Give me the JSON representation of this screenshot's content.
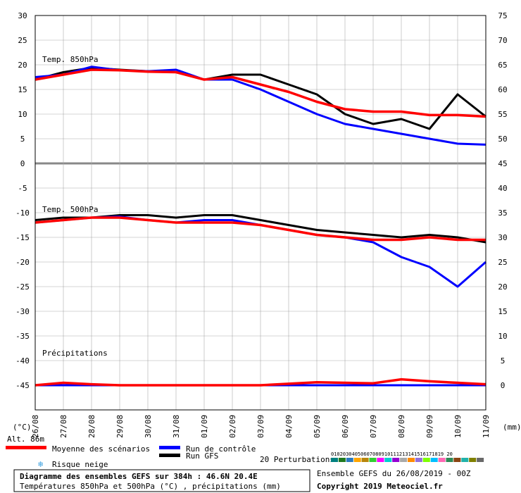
{
  "chart_data": {
    "type": "line",
    "title": "Diagramme des ensembles GEFS sur 384h : 46.6N 20.4E",
    "subtitle": "Températures 850hPa et 500hPa (°C) , précipitations (mm)",
    "unit_left": "(°C)",
    "unit_right": "(mm)",
    "altitude": "Alt. 86m",
    "x_dates": [
      "26/08",
      "27/08",
      "28/08",
      "29/08",
      "30/08",
      "31/08",
      "01/09",
      "02/09",
      "03/09",
      "04/09",
      "05/09",
      "06/09",
      "07/09",
      "08/09",
      "09/09",
      "10/09",
      "11/09"
    ],
    "y_left_ticks": [
      30,
      25,
      20,
      15,
      10,
      5,
      0,
      -5,
      -10,
      -15,
      -20,
      -25,
      -30,
      -35,
      -40,
      -45
    ],
    "y_right_ticks": [
      75,
      70,
      65,
      60,
      55,
      50,
      45,
      40,
      35,
      30,
      25,
      20,
      15,
      10,
      5,
      0
    ],
    "panels": [
      {
        "label": "Temp. 850hPa",
        "control_run": [
          17.5,
          18.0,
          19.6,
          18.9,
          18.7,
          19.0,
          17.0,
          17.0,
          15.0,
          12.5,
          10.0,
          8.0,
          7.0,
          6.0,
          5.0,
          4.0,
          3.8
        ],
        "gfs_run": [
          17.0,
          18.5,
          19.4,
          19.0,
          18.7,
          18.5,
          17.0,
          18.0,
          18.0,
          16.0,
          14.0,
          10.0,
          8.0,
          9.0,
          7.0,
          14.0,
          9.5
        ],
        "mean": [
          17.0,
          18.0,
          19.0,
          18.9,
          18.6,
          18.5,
          17.0,
          17.5,
          16.0,
          14.5,
          12.5,
          11.0,
          10.5,
          10.5,
          9.8,
          9.8,
          9.5
        ]
      },
      {
        "label": "Temp. 500hPa",
        "control_run": [
          -12.0,
          -11.5,
          -11.0,
          -10.8,
          -11.5,
          -12.0,
          -11.5,
          -11.5,
          -12.5,
          -13.5,
          -14.5,
          -15.0,
          -16.0,
          -19.0,
          -21.0,
          -25.0,
          -20.0
        ],
        "gfs_run": [
          -11.5,
          -11.0,
          -11.0,
          -10.5,
          -10.5,
          -11.0,
          -10.5,
          -10.5,
          -11.5,
          -12.5,
          -13.5,
          -14.0,
          -14.5,
          -15.0,
          -14.5,
          -15.0,
          -16.0
        ],
        "mean": [
          -12.0,
          -11.5,
          -11.0,
          -11.0,
          -11.5,
          -12.0,
          -12.0,
          -12.0,
          -12.5,
          -13.5,
          -14.5,
          -15.0,
          -15.5,
          -15.5,
          -15.0,
          -15.5,
          -15.5
        ]
      },
      {
        "label": "Précipitations",
        "control_run": [
          0,
          0,
          0,
          0,
          0,
          0,
          0,
          0,
          0,
          0,
          0,
          0,
          0,
          0,
          0,
          0,
          0
        ],
        "gfs_run": [
          0,
          0,
          0,
          0,
          0,
          0,
          0,
          0,
          0,
          0,
          0,
          0,
          0,
          0,
          0,
          0,
          0
        ],
        "mean": [
          0,
          0.5,
          0.2,
          0,
          0,
          0,
          0,
          0,
          0,
          0.3,
          0.6,
          0.5,
          0.4,
          1.2,
          0.8,
          0.5,
          0.2
        ]
      }
    ],
    "ensemble_members": [
      "01",
      "02",
      "03",
      "04",
      "05",
      "06",
      "07",
      "08",
      "09",
      "10",
      "11",
      "12",
      "13",
      "14",
      "15",
      "16",
      "17",
      "18",
      "19",
      "20"
    ],
    "ensemble_colors": [
      "#008080",
      "#1f7a1f",
      "#2a7abf",
      "#ffa500",
      "#b8860b",
      "#32cd32",
      "#ff00ff",
      "#00ced1",
      "#9400d3",
      "#a9a9a9",
      "#ff8c00",
      "#9370db",
      "#7fff00",
      "#00bfff",
      "#ff69b4",
      "#2e8b57",
      "#8b4513",
      "#20b2aa",
      "#808000",
      "#696969"
    ],
    "colors": {
      "mean": "#ff0000",
      "control": "#0000ff",
      "gfs": "#000000",
      "grid": "#aaaaaa"
    }
  },
  "legend": {
    "mean": "Moyenne des scénarios",
    "control": "Run de contrôle",
    "gfs": "Run GFS",
    "perturbations": "20 Perturbations",
    "snow": "Risque neige",
    "member_numbers": "01020304050607080910111213141516171819 20"
  },
  "footer": {
    "title": "Diagramme des ensembles GEFS sur 384h : 46.6N 20.4E",
    "subtitle": "Températures 850hPa et 500hPa (°C) , précipitations (mm)",
    "run_info": "Ensemble GEFS du 26/08/2019 - 00Z",
    "copyright": "Copyright 2019 Meteociel.fr"
  }
}
